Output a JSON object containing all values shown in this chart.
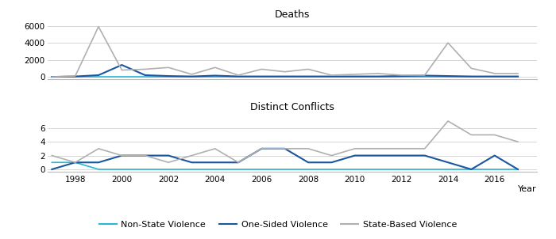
{
  "years": [
    1997,
    1998,
    1999,
    2000,
    2001,
    2002,
    2003,
    2004,
    2005,
    2006,
    2007,
    2008,
    2009,
    2010,
    2011,
    2012,
    2013,
    2014,
    2015,
    2016,
    2017
  ],
  "deaths_nonstate": [
    0,
    0,
    0,
    0,
    0,
    0,
    0,
    0,
    0,
    0,
    0,
    0,
    0,
    0,
    0,
    0,
    0,
    0,
    0,
    0,
    0
  ],
  "deaths_onesided": [
    0,
    50,
    200,
    1400,
    200,
    100,
    50,
    150,
    50,
    50,
    50,
    50,
    50,
    50,
    50,
    100,
    150,
    100,
    50,
    50,
    50
  ],
  "deaths_statebased": [
    0,
    100,
    5900,
    800,
    900,
    1100,
    300,
    1100,
    200,
    900,
    600,
    900,
    200,
    300,
    400,
    200,
    200,
    4000,
    1000,
    400,
    400
  ],
  "conflicts_nonstate": [
    1,
    1,
    0,
    0,
    0,
    0,
    0,
    0,
    0,
    0,
    0,
    0,
    0,
    0,
    0,
    0,
    0,
    0,
    0,
    0,
    0
  ],
  "conflicts_onesided": [
    0,
    1,
    1,
    2,
    2,
    2,
    1,
    1,
    1,
    3,
    3,
    1,
    1,
    2,
    2,
    2,
    2,
    1,
    0,
    2,
    0
  ],
  "conflicts_statebased": [
    2,
    1,
    3,
    2,
    2,
    1,
    2,
    3,
    1,
    3,
    3,
    3,
    2,
    3,
    3,
    3,
    3,
    7,
    5,
    5,
    4
  ],
  "color_nonstate": "#29b6d4",
  "color_onesided": "#1a56a0",
  "color_statebased": "#b0b0b0",
  "title_deaths": "Deaths",
  "title_conflicts": "Distinct Conflicts",
  "xlabel": "Year",
  "legend_labels": [
    "Non-State Violence",
    "One-Sided Violence",
    "State-Based Violence"
  ],
  "deaths_ylim": [
    -300,
    6500
  ],
  "conflicts_ylim": [
    -0.4,
    8
  ],
  "deaths_yticks": [
    0,
    2000,
    4000,
    6000
  ],
  "conflicts_yticks": [
    0,
    2,
    4,
    6
  ],
  "xtick_years": [
    1998,
    2000,
    2002,
    2004,
    2006,
    2008,
    2010,
    2012,
    2014,
    2016
  ],
  "xlim": [
    1996.8,
    2017.8
  ]
}
